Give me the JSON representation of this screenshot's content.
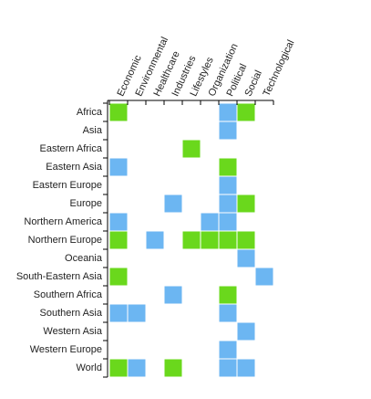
{
  "chart_data": {
    "type": "matrix",
    "columns": [
      "Economic",
      "Environmental",
      "Healthcare",
      "Industries",
      "Lifestyles",
      "Organization",
      "Political",
      "Social",
      "Technological"
    ],
    "rows": [
      "Africa",
      "Asia",
      "Eastern Africa",
      "Eastern Asia",
      "Eastern Europe",
      "Europe",
      "Northern America",
      "Northern Europe",
      "Oceania",
      "South-Eastern Asia",
      "Southern Africa",
      "Southern Asia",
      "Western Asia",
      "Western Europe",
      "World"
    ],
    "values": [
      [
        "#6ad81c",
        null,
        null,
        null,
        null,
        null,
        "#6cb6f2",
        "#6ad81c",
        null
      ],
      [
        null,
        null,
        null,
        null,
        null,
        null,
        "#6cb6f2",
        null,
        null
      ],
      [
        null,
        null,
        null,
        null,
        "#6ad81c",
        null,
        null,
        null,
        null
      ],
      [
        "#6cb6f2",
        null,
        null,
        null,
        null,
        null,
        "#6ad81c",
        null,
        null
      ],
      [
        null,
        null,
        null,
        null,
        null,
        null,
        "#6cb6f2",
        null,
        null
      ],
      [
        null,
        null,
        null,
        "#6cb6f2",
        null,
        null,
        "#6cb6f2",
        "#6ad81c",
        null
      ],
      [
        "#6cb6f2",
        null,
        null,
        null,
        null,
        "#6cb6f2",
        "#6cb6f2",
        null,
        null
      ],
      [
        "#6ad81c",
        null,
        "#6cb6f2",
        null,
        "#6ad81c",
        "#6ad81c",
        "#6ad81c",
        "#6ad81c",
        null
      ],
      [
        null,
        null,
        null,
        null,
        null,
        null,
        null,
        "#6cb6f2",
        null
      ],
      [
        "#6ad81c",
        null,
        null,
        null,
        null,
        null,
        null,
        null,
        "#6cb6f2"
      ],
      [
        null,
        null,
        null,
        "#6cb6f2",
        null,
        null,
        "#6ad81c",
        null,
        null
      ],
      [
        "#6cb6f2",
        "#6cb6f2",
        null,
        null,
        null,
        null,
        "#6cb6f2",
        null,
        null
      ],
      [
        null,
        null,
        null,
        null,
        null,
        null,
        null,
        "#6cb6f2",
        null
      ],
      [
        null,
        null,
        null,
        null,
        null,
        null,
        "#6cb6f2",
        null,
        null
      ],
      [
        "#6ad81c",
        "#6cb6f2",
        null,
        "#6ad81c",
        null,
        null,
        "#6cb6f2",
        "#6cb6f2",
        null
      ]
    ]
  }
}
